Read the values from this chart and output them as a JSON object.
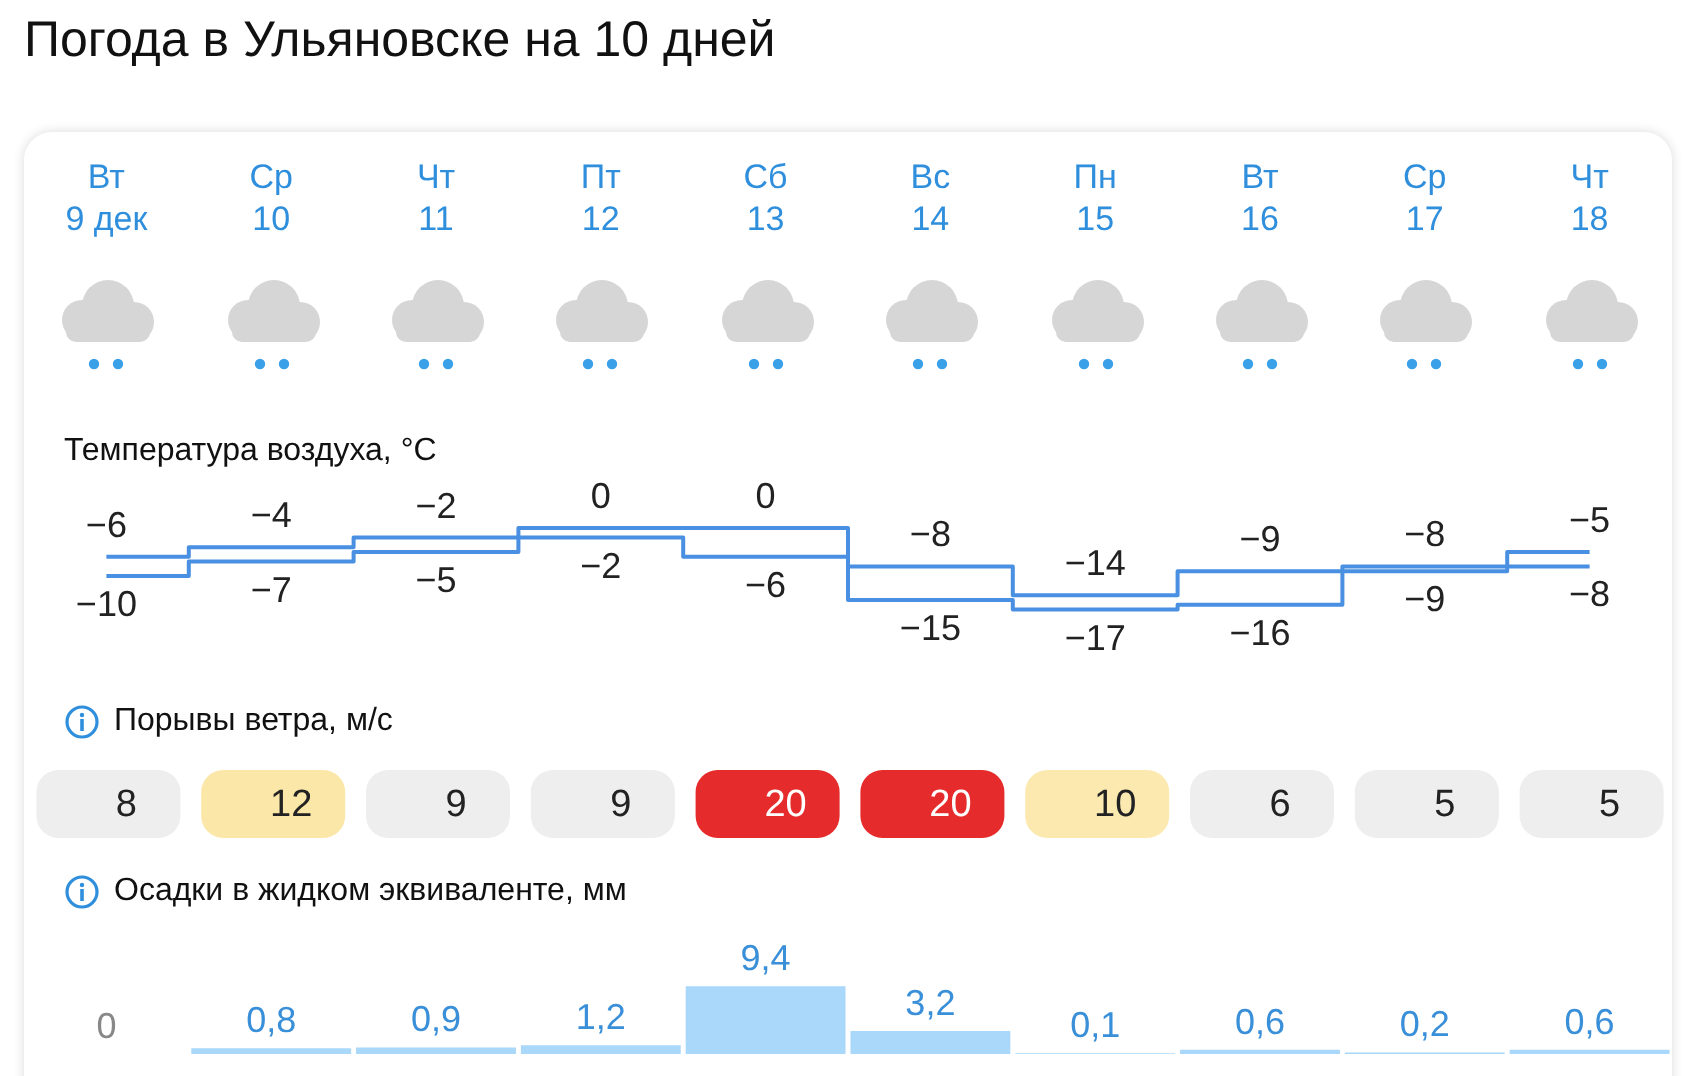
{
  "chart_data": [
    {
      "type": "step",
      "title": "Погода в Ульяновске на 10 дней",
      "subtitle": "Температура воздуха, °C",
      "categories": [
        "Вт 9 дек",
        "Ср 10",
        "Чт 11",
        "Пт 12",
        "Сб 13",
        "Вс 14",
        "Пн 15",
        "Вт 16",
        "Ср 17",
        "Чт 18"
      ],
      "series": [
        {
          "color": "#4a90e2",
          "values": [
            -6,
            -4,
            -2,
            0,
            0,
            -8,
            -14,
            -9,
            -8,
            -5
          ],
          "value_labels": [
            "−6",
            "−4",
            "−2",
            "0",
            "0",
            "−8",
            "−14",
            "−9",
            "−8",
            "−5"
          ]
        },
        {
          "color": "#4a90e2",
          "values": [
            -10,
            -7,
            -5,
            -2,
            -6,
            -15,
            -17,
            -16,
            -9,
            -8
          ],
          "value_labels": [
            "−10",
            "−7",
            "−5",
            "−2",
            "−6",
            "−15",
            "−17",
            "−16",
            "−9",
            "−8"
          ]
        }
      ],
      "tick_labels": "x"
    },
    {
      "type": "other",
      "title": "Порывы ветра, м/с",
      "values": [
        8,
        12,
        9,
        9,
        20,
        20,
        10,
        6,
        5,
        5
      ],
      "colors": [
        "#eeeeee",
        "#fbe7a8",
        "#eeeeee",
        "#eeeeee",
        "#e52b2b",
        "#e52b2b",
        "#fbe9b0",
        "#eeeeee",
        "#eeeeee",
        "#eeeeee"
      ],
      "data_labels": true
    },
    {
      "type": "bar",
      "title": "Осадки в жидком эквиваленте, мм",
      "categories": [
        null,
        null,
        null,
        null,
        null,
        null,
        null,
        null,
        null,
        null
      ],
      "values": [
        0,
        0.8,
        0.9,
        1.2,
        9.4,
        3.2,
        0.1,
        0.6,
        0.2,
        0.6
      ],
      "color": "#a9d8fa",
      "value_labels": [
        "0",
        "0,8",
        "0,9",
        "1,2",
        "9,4",
        "3,2",
        "0,1",
        "0,6",
        "0,2",
        "0,6"
      ],
      "tick_labels": false
    }
  ]
}
